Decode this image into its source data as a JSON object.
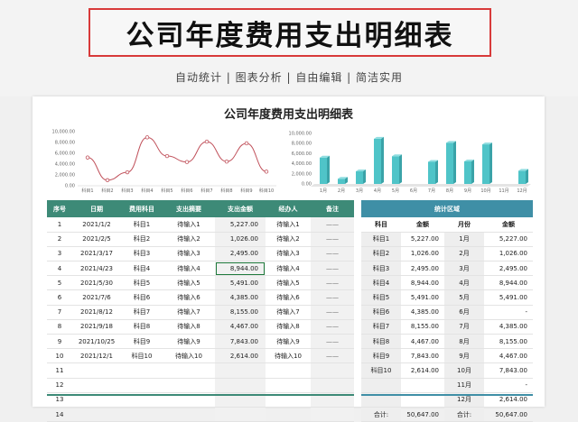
{
  "banner": {
    "title": "公司年度费用支出明细表",
    "tagline": "自动统计 | 图表分析 | 自由编辑 | 简洁实用"
  },
  "sheet": {
    "title": "公司年度费用支出明细表"
  },
  "colors": {
    "line_series": "#c0505a",
    "bar_series": "#4fc4c8",
    "main_header": "#3d8a77",
    "side_header": "#3f8fa6",
    "banner_border": "#d83a3a"
  },
  "chart_data": [
    {
      "type": "line",
      "title": "",
      "categories": [
        "科目1",
        "科目2",
        "科目3",
        "科目4",
        "科目5",
        "科目6",
        "科目7",
        "科目8",
        "科目9",
        "科目10"
      ],
      "values": [
        5227,
        1026,
        2495,
        8944,
        5491,
        4385,
        8155,
        4467,
        7843,
        2614
      ],
      "yticks": [
        "10,000.00",
        "8,000.00",
        "6,000.00",
        "4,000.00",
        "2,000.00",
        "0.00"
      ],
      "ylim": [
        0,
        10000
      ],
      "grid": false,
      "color": "#c0505a"
    },
    {
      "type": "bar",
      "title": "",
      "categories": [
        "1月",
        "2月",
        "3月",
        "4月",
        "5月",
        "6月",
        "7月",
        "8月",
        "9月",
        "10月",
        "11月",
        "12月"
      ],
      "values": [
        5227,
        1026,
        2495,
        8944,
        5491,
        0,
        4385,
        8155,
        4467,
        7843,
        0,
        2614
      ],
      "yticks": [
        "10,000.00",
        "8,000.00",
        "6,000.00",
        "4,000.00",
        "2,000.00",
        "0.00"
      ],
      "ylim": [
        0,
        10000
      ],
      "grid": false,
      "color": "#4fc4c8"
    }
  ],
  "main_table": {
    "headers": [
      "序号",
      "日期",
      "费用科目",
      "支出摘要",
      "支出金额",
      "经办人",
      "备注"
    ],
    "rows": [
      [
        "1",
        "2021/1/2",
        "科目1",
        "待输入1",
        "5,227.00",
        "待输入1",
        "——"
      ],
      [
        "2",
        "2021/2/5",
        "科目2",
        "待输入2",
        "1,026.00",
        "待输入2",
        "——"
      ],
      [
        "3",
        "2021/3/17",
        "科目3",
        "待输入3",
        "2,495.00",
        "待输入3",
        "——"
      ],
      [
        "4",
        "2021/4/23",
        "科目4",
        "待输入4",
        "8,944.00",
        "待输入4",
        "——"
      ],
      [
        "5",
        "2021/5/30",
        "科目5",
        "待输入5",
        "5,491.00",
        "待输入5",
        "——"
      ],
      [
        "6",
        "2021/7/6",
        "科目6",
        "待输入6",
        "4,385.00",
        "待输入6",
        "——"
      ],
      [
        "7",
        "2021/8/12",
        "科目7",
        "待输入7",
        "8,155.00",
        "待输入7",
        "——"
      ],
      [
        "8",
        "2021/9/18",
        "科目8",
        "待输入8",
        "4,467.00",
        "待输入8",
        "——"
      ],
      [
        "9",
        "2021/10/25",
        "科目9",
        "待输入9",
        "7,843.00",
        "待输入9",
        "——"
      ],
      [
        "10",
        "2021/12/1",
        "科目10",
        "待输入10",
        "2,614.00",
        "待输入10",
        "——"
      ],
      [
        "11",
        "",
        "",
        "",
        "",
        "",
        ""
      ],
      [
        "12",
        "",
        "",
        "",
        "",
        "",
        ""
      ],
      [
        "13",
        "",
        "",
        "",
        "",
        "",
        ""
      ],
      [
        "14",
        "",
        "",
        "",
        "",
        "",
        ""
      ]
    ]
  },
  "side_table": {
    "header": "统计区域",
    "col_headers": [
      "科目",
      "金额",
      "月份",
      "金额"
    ],
    "rows": [
      [
        "科目1",
        "5,227.00",
        "1月",
        "5,227.00"
      ],
      [
        "科目2",
        "1,026.00",
        "2月",
        "1,026.00"
      ],
      [
        "科目3",
        "2,495.00",
        "3月",
        "2,495.00"
      ],
      [
        "科目4",
        "8,944.00",
        "4月",
        "8,944.00"
      ],
      [
        "科目5",
        "5,491.00",
        "5月",
        "5,491.00"
      ],
      [
        "科目6",
        "4,385.00",
        "6月",
        "-"
      ],
      [
        "科目7",
        "8,155.00",
        "7月",
        "4,385.00"
      ],
      [
        "科目8",
        "4,467.00",
        "8月",
        "8,155.00"
      ],
      [
        "科目9",
        "7,843.00",
        "9月",
        "4,467.00"
      ],
      [
        "科目10",
        "2,614.00",
        "10月",
        "7,843.00"
      ],
      [
        "",
        "",
        "11月",
        "-"
      ],
      [
        "",
        "",
        "12月",
        "2,614.00"
      ],
      [
        "合计:",
        "50,647.00",
        "合计:",
        "50,647.00"
      ]
    ]
  }
}
